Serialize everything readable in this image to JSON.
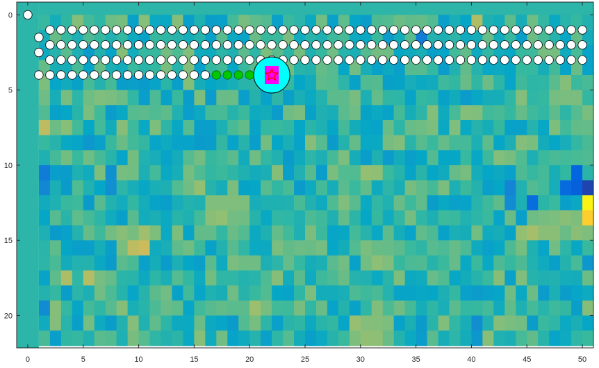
{
  "chart_data": {
    "type": "heatmap",
    "title": "",
    "xlabel": "",
    "ylabel": "",
    "xlim": [
      -1,
      51
    ],
    "ylim": [
      22.15,
      -0.85
    ],
    "y_direction": "reverse",
    "xticks": [
      0,
      5,
      10,
      15,
      20,
      25,
      30,
      35,
      40,
      45,
      50
    ],
    "xtick_labels": [
      "0",
      "5",
      "10",
      "15",
      "20",
      "25",
      "30",
      "35",
      "40",
      "45",
      "50"
    ],
    "yticks": [
      0,
      5,
      10,
      15,
      20
    ],
    "ytick_labels": [
      "0",
      "5",
      "10",
      "15",
      "20"
    ],
    "grid": false,
    "colormap": "parula",
    "colormap_stops": [
      "#352a87",
      "#0363e1",
      "#1485d4",
      "#06a7c6",
      "#38b99e",
      "#92bf73",
      "#d9ba56",
      "#fcce2e",
      "#f9fb0e"
    ],
    "color_limits": [
      0,
      1
    ],
    "heatmap": {
      "x_columns": [
        1,
        51
      ],
      "y_rows": [
        0,
        22
      ],
      "background_value": 0.47,
      "noise": {
        "seed": 7,
        "amplitude": 0.14
      },
      "patches": [
        {
          "x": [
            1,
            2
          ],
          "y": [
            4,
            5
          ],
          "v": 0.58
        },
        {
          "x": [
            1,
            2
          ],
          "y": [
            7,
            8
          ],
          "v": 0.72
        },
        {
          "x": [
            1,
            2
          ],
          "y": [
            10,
            11
          ],
          "v": 0.2
        },
        {
          "x": [
            1,
            2
          ],
          "y": [
            11,
            12
          ],
          "v": 0.27
        },
        {
          "x": [
            1,
            2
          ],
          "y": [
            19,
            20
          ],
          "v": 0.3
        },
        {
          "x": [
            3,
            4
          ],
          "y": [
            17,
            18
          ],
          "v": 0.66
        },
        {
          "x": [
            5,
            6
          ],
          "y": [
            17,
            18
          ],
          "v": 0.68
        },
        {
          "x": [
            5,
            6
          ],
          "y": [
            18,
            19
          ],
          "v": 0.42
        },
        {
          "x": [
            8,
            9
          ],
          "y": [
            14,
            15
          ],
          "v": 0.62
        },
        {
          "x": [
            9,
            11
          ],
          "y": [
            15,
            16
          ],
          "v": 0.72
        },
        {
          "x": [
            10,
            11
          ],
          "y": [
            14,
            15
          ],
          "v": 0.66
        },
        {
          "x": [
            5,
            6
          ],
          "y": [
            8,
            9
          ],
          "v": 0.32
        },
        {
          "x": [
            7,
            8
          ],
          "y": [
            10,
            12
          ],
          "v": 0.3
        },
        {
          "x": [
            15,
            16
          ],
          "y": [
            11,
            12
          ],
          "v": 0.6
        },
        {
          "x": [
            16,
            20
          ],
          "y": [
            12,
            14
          ],
          "v": 0.6
        },
        {
          "x": [
            19,
            21
          ],
          "y": [
            16,
            17
          ],
          "v": 0.6
        },
        {
          "x": [
            20,
            21
          ],
          "y": [
            19,
            20
          ],
          "v": 0.64
        },
        {
          "x": [
            30,
            32
          ],
          "y": [
            10,
            11
          ],
          "v": 0.64
        },
        {
          "x": [
            30,
            32
          ],
          "y": [
            15,
            17
          ],
          "v": 0.6
        },
        {
          "x": [
            29,
            32
          ],
          "y": [
            20,
            22
          ],
          "v": 0.62
        },
        {
          "x": [
            35,
            36
          ],
          "y": [
            1,
            2
          ],
          "v": 0.22
        },
        {
          "x": [
            40,
            41
          ],
          "y": [
            0,
            1
          ],
          "v": 0.68
        },
        {
          "x": [
            43,
            44
          ],
          "y": [
            11,
            13
          ],
          "v": 0.26
        },
        {
          "x": [
            45,
            46
          ],
          "y": [
            12,
            13
          ],
          "v": 0.16
        },
        {
          "x": [
            44,
            46
          ],
          "y": [
            14,
            15
          ],
          "v": 0.64
        },
        {
          "x": [
            46,
            50
          ],
          "y": [
            13,
            15
          ],
          "v": 0.6
        },
        {
          "x": [
            48,
            50
          ],
          "y": [
            11,
            12
          ],
          "v": 0.13
        },
        {
          "x": [
            49,
            50
          ],
          "y": [
            10,
            11
          ],
          "v": 0.14
        },
        {
          "x": [
            50,
            51
          ],
          "y": [
            11,
            12
          ],
          "v": 0.03
        },
        {
          "x": [
            50,
            51
          ],
          "y": [
            12,
            13
          ],
          "v": 1.0
        },
        {
          "x": [
            50,
            51
          ],
          "y": [
            13,
            14
          ],
          "v": 0.85
        },
        {
          "x": [
            50,
            51
          ],
          "y": [
            14,
            15
          ],
          "v": 0.58
        },
        {
          "x": [
            50,
            51
          ],
          "y": [
            16,
            17
          ],
          "v": 0.3
        },
        {
          "x": [
            49,
            51
          ],
          "y": [
            6,
            8
          ],
          "v": 0.56
        },
        {
          "x": [
            40,
            41
          ],
          "y": [
            20,
            22
          ],
          "v": 0.3
        }
      ]
    },
    "markers": {
      "start": {
        "x": 0,
        "y": 0,
        "fill": "#ffffff",
        "edge": "#000000"
      },
      "visited": {
        "fill": "#ffffff",
        "edge": "#000000",
        "rows": [
          {
            "y": 1,
            "x": [
              2,
              50
            ]
          },
          {
            "y": 2,
            "x": [
              2,
              50
            ]
          },
          {
            "y": 3,
            "x": [
              2,
              50
            ]
          },
          {
            "y": 4,
            "x": [
              2,
              16
            ]
          }
        ],
        "extra_points": [
          {
            "x": 1,
            "y": 1.5
          },
          {
            "x": 1,
            "y": 2.5
          },
          {
            "x": 1,
            "y": 4
          }
        ]
      },
      "trail": {
        "fill": "#00c800",
        "edge": "#006400",
        "y": 4,
        "x": [
          17,
          21
        ]
      },
      "current": {
        "x": 22,
        "y": 4,
        "circle_fill": "#00ffff",
        "circle_edge": "#000000",
        "core_fill": "#ff00ff",
        "star_color": "#ff0000"
      }
    }
  }
}
